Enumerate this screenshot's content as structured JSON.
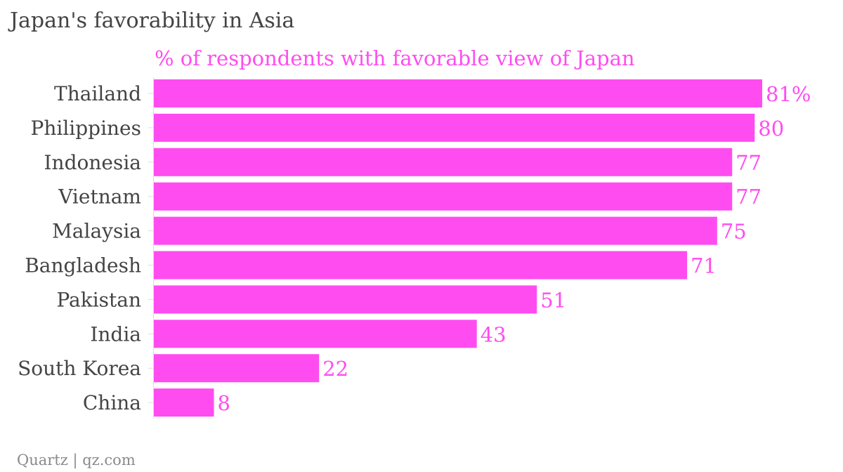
{
  "title": "Japan's favorability in Asia",
  "source": "Quartz | qz.com",
  "chart_data": {
    "type": "bar",
    "orientation": "horizontal",
    "subtitle": "% of respondents with favorable view of Japan",
    "categories": [
      "Thailand",
      "Philippines",
      "Indonesia",
      "Vietnam",
      "Malaysia",
      "Bangladesh",
      "Pakistan",
      "India",
      "South Korea",
      "China"
    ],
    "values": [
      81,
      80,
      77,
      77,
      75,
      71,
      51,
      43,
      22,
      8
    ],
    "value_labels": [
      "81%",
      "80",
      "77",
      "77",
      "75",
      "71",
      "51",
      "43",
      "22",
      "8"
    ],
    "xlim": [
      0,
      81
    ],
    "grid": false,
    "legend": "none",
    "colors": {
      "bar": "#ff4cf0",
      "subtitle": "#ff4cf0",
      "value_label": "#ff4cf0",
      "category_label": "#444444",
      "title": "#444444",
      "source": "#8a8a8a",
      "axis": "#dddddd"
    }
  }
}
